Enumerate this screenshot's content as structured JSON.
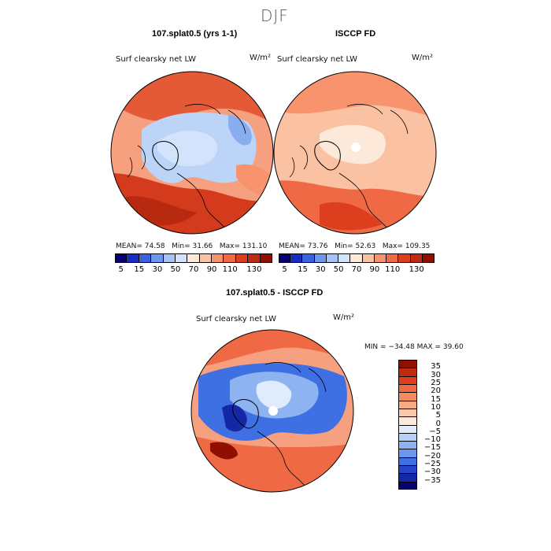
{
  "figure": {
    "title": "DJF",
    "units": "W/m²"
  },
  "panel_left": {
    "heading": "107.splat0.5 (yrs 1-1)",
    "field": "Surf clearsky net LW",
    "units": "W/m²",
    "stats": {
      "mean_label": "MEAN=",
      "mean": "74.58",
      "min_label": "Min=",
      "min": "31.66",
      "max_label": "Max=",
      "max": "131.10"
    }
  },
  "panel_right": {
    "heading": "ISCCP FD",
    "field": "Surf clearsky net LW",
    "units": "W/m²",
    "stats": {
      "mean_label": "MEAN=",
      "mean": "73.76",
      "min_label": "Min=",
      "min": "52.63",
      "max_label": "Max=",
      "max": "109.35"
    }
  },
  "panel_diff": {
    "heading": "107.splat0.5 - ISCCP FD",
    "field": "Surf clearsky net LW",
    "units": "W/m²",
    "minmax_text": "MIN = −34.48 MAX =  39.60"
  },
  "colorbar_abs": {
    "labels": [
      "5",
      "15",
      "30",
      "50",
      "70",
      "90",
      "110",
      "130"
    ],
    "colors": [
      "#08006e",
      "#1a2fbf",
      "#3a64e0",
      "#6d97ef",
      "#a5c3f7",
      "#d3e3fb",
      "#fde9d9",
      "#fbc1a3",
      "#f7946d",
      "#ef6a44",
      "#dd3f1e",
      "#c02a10",
      "#8f0f00"
    ]
  },
  "colorbar_diff": {
    "labels": [
      "35",
      "30",
      "25",
      "20",
      "15",
      "10",
      "5",
      "0",
      "−5",
      "−10",
      "−15",
      "−20",
      "−25",
      "−30",
      "−35"
    ],
    "colors": [
      "#8f0f00",
      "#c02a10",
      "#dd3f1e",
      "#ef6a44",
      "#f58a60",
      "#f9ab86",
      "#fbc9ad",
      "#fde9d9",
      "#e0ebfb",
      "#b6cff6",
      "#8db3f1",
      "#6d97ef",
      "#3f70e3",
      "#2545c9",
      "#1427a4",
      "#08006e"
    ]
  },
  "chart_data": [
    {
      "type": "heatmap",
      "title": "107.splat0.5 (yrs 1-1)",
      "field": "Surf clearsky net LW",
      "units": "W/m²",
      "projection": "north polar stereographic",
      "stats": {
        "mean": 74.58,
        "min": 31.66,
        "max": 131.1
      },
      "contour_levels": [
        5,
        15,
        30,
        50,
        70,
        90,
        110,
        130
      ]
    },
    {
      "type": "heatmap",
      "title": "ISCCP FD",
      "field": "Surf clearsky net LW",
      "units": "W/m²",
      "projection": "north polar stereographic",
      "stats": {
        "mean": 73.76,
        "min": 52.63,
        "max": 109.35
      },
      "contour_levels": [
        5,
        15,
        30,
        50,
        70,
        90,
        110,
        130
      ]
    },
    {
      "type": "heatmap",
      "title": "107.splat0.5 - ISCCP FD",
      "field": "Surf clearsky net LW",
      "units": "W/m²",
      "projection": "north polar stereographic",
      "stats": {
        "min": -34.48,
        "max": 39.6
      },
      "contour_levels": [
        -35,
        -30,
        -25,
        -20,
        -15,
        -10,
        -5,
        0,
        5,
        10,
        15,
        20,
        25,
        30,
        35
      ]
    }
  ]
}
